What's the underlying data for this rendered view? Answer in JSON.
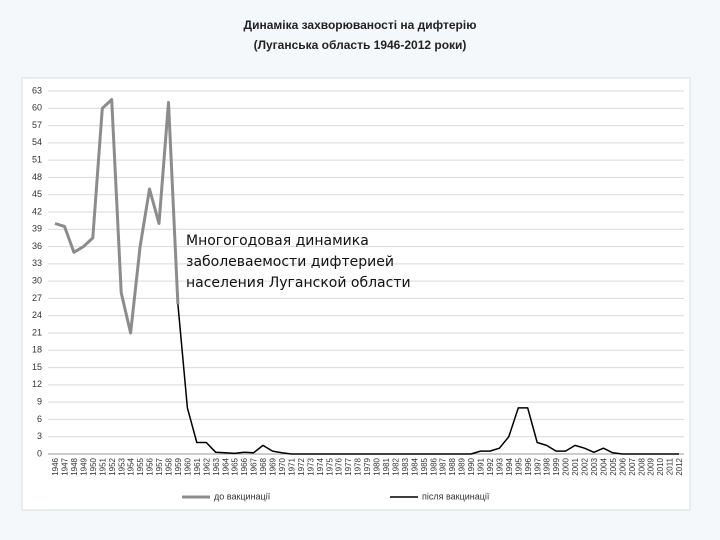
{
  "chart_data": {
    "type": "line",
    "title": "Динаміка захворюваності  на дифтерію",
    "subtitle": "(Луганська область 1946-2012 роки)",
    "annotation": [
      "Многогодовая динамика",
      "заболеваемости дифтерией",
      "населения Луганской области"
    ],
    "categories": [
      "1946",
      "1947",
      "1948",
      "1949",
      "1950",
      "1951",
      "1952",
      "1953",
      "1954",
      "1955",
      "1956",
      "1957",
      "1958",
      "1959",
      "1960",
      "1961",
      "1962",
      "1963",
      "1964",
      "1965",
      "1966",
      "1967",
      "1968",
      "1969",
      "1970",
      "1971",
      "1972",
      "1973",
      "1974",
      "1975",
      "1976",
      "1977",
      "1978",
      "1979",
      "1980",
      "1981",
      "1982",
      "1983",
      "1984",
      "1985",
      "1986",
      "1987",
      "1988",
      "1989",
      "1990",
      "1991",
      "1992",
      "1993",
      "1994",
      "1995",
      "1996",
      "1997",
      "1998",
      "1999",
      "2000",
      "2001",
      "2002",
      "2003",
      "2004",
      "2005",
      "2006",
      "2007",
      "2008",
      "2009",
      "2010",
      "2011",
      "2012"
    ],
    "series": [
      {
        "name": "до вакцинації",
        "color": "#8c8c8c",
        "width": 3,
        "values": [
          40,
          39.5,
          35,
          36,
          37.5,
          60,
          61.5,
          28,
          21,
          36,
          46,
          40,
          61,
          26,
          null,
          null,
          null,
          null,
          null,
          null,
          null,
          null,
          null,
          null,
          null,
          null,
          null,
          null,
          null,
          null,
          null,
          null,
          null,
          null,
          null,
          null,
          null,
          null,
          null,
          null,
          null,
          null,
          null,
          null,
          null,
          null,
          null,
          null,
          null,
          null,
          null,
          null,
          null,
          null,
          null,
          null,
          null,
          null,
          null,
          null,
          null,
          null,
          null,
          null,
          null,
          null,
          null
        ]
      },
      {
        "name": "після вакцинації",
        "color": "#000000",
        "width": 1.5,
        "values": [
          null,
          null,
          null,
          null,
          null,
          null,
          null,
          null,
          null,
          null,
          null,
          null,
          null,
          26,
          8,
          2,
          2,
          0.3,
          0.2,
          0.1,
          0.3,
          0.2,
          1.5,
          0.5,
          0.2,
          0,
          0,
          0,
          0,
          0,
          0,
          0,
          0,
          0,
          0,
          0,
          0,
          0,
          0,
          0,
          0,
          0,
          0,
          0,
          0,
          0.5,
          0.5,
          1,
          3,
          8,
          8,
          2,
          1.5,
          0.5,
          0.5,
          1.5,
          1,
          0.3,
          1,
          0.2,
          0,
          0,
          0,
          0,
          0,
          0,
          0
        ]
      }
    ],
    "ylim": [
      0,
      63
    ],
    "yticks": [
      0,
      3,
      6,
      9,
      12,
      15,
      18,
      21,
      24,
      27,
      30,
      33,
      36,
      39,
      42,
      45,
      48,
      51,
      54,
      57,
      60,
      63
    ],
    "grid": true,
    "legend": "bottom"
  }
}
